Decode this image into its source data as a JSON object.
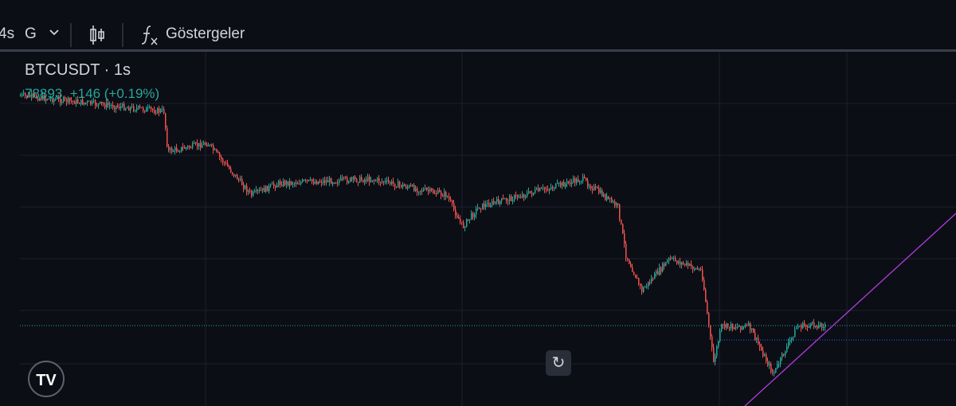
{
  "toolbar": {
    "interval_partial": "4s",
    "interval_unit": "G",
    "dropdown_icon": "chevron-down-icon",
    "chart_type_icon": "candles-icon",
    "indicators_icon": "fx-icon",
    "indicators_label": "Göstergeler"
  },
  "legend": {
    "symbol": "BTCUSDT · 1s",
    "last_price": "78893",
    "change": "+146 (+0.19%)"
  },
  "colors": {
    "up": "#26a69a",
    "down": "#ef5350",
    "trendline": "#b03de0",
    "last_price_line": "#26a69a",
    "horizontal_line": "#2962ff",
    "background": "#0c0e15",
    "grid": "#1c2030"
  },
  "logo": {
    "text": "TV"
  },
  "reset_icon": "reset-rotate-icon"
}
